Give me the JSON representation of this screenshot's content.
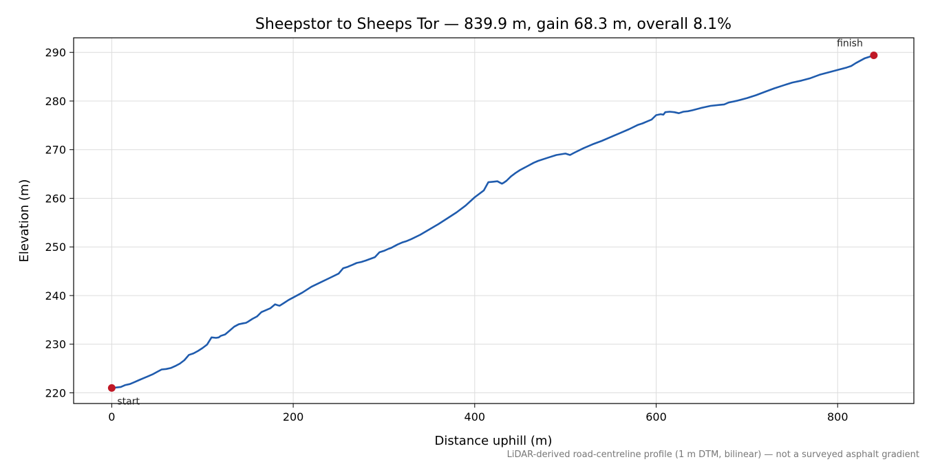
{
  "chart_data": {
    "type": "line",
    "title": "Sheepstor to Sheeps Tor — 839.9 m, gain 68.3 m, overall 8.1%",
    "xlabel": "Distance uphill (m)",
    "ylabel": "Elevation (m)",
    "xlim": [
      -42,
      884
    ],
    "ylim": [
      217.8,
      293.0
    ],
    "x_ticks": [
      0,
      200,
      400,
      600,
      800
    ],
    "y_ticks": [
      220,
      230,
      240,
      250,
      260,
      270,
      280,
      290
    ],
    "grid": true,
    "line_color": "#1f5bad",
    "marker_color": "#c01826",
    "series": [
      {
        "x": [
          0,
          5,
          10,
          15,
          20,
          25,
          30,
          35,
          40,
          45,
          50,
          55,
          60,
          65,
          70,
          75,
          80,
          85,
          90,
          95,
          100,
          105,
          110,
          115,
          118,
          120,
          125,
          130,
          135,
          140,
          145,
          148,
          150,
          155,
          160,
          165,
          170,
          175,
          180,
          183,
          185,
          190,
          195,
          200,
          210,
          220,
          230,
          240,
          250,
          255,
          260,
          265,
          270,
          275,
          280,
          290,
          295,
          300,
          305,
          308,
          310,
          315,
          320,
          325,
          330,
          340,
          350,
          360,
          370,
          380,
          390,
          400,
          410,
          415,
          420,
          425,
          428,
          430,
          432,
          435,
          440,
          445,
          450,
          460,
          465,
          470,
          480,
          490,
          500,
          505,
          510,
          520,
          530,
          540,
          550,
          560,
          570,
          580,
          585,
          590,
          595,
          600,
          605,
          608,
          610,
          615,
          620,
          625,
          630,
          635,
          640,
          650,
          660,
          670,
          675,
          680,
          690,
          700,
          710,
          720,
          730,
          740,
          750,
          760,
          770,
          780,
          790,
          800,
          810,
          815,
          820,
          830,
          839.9
        ],
        "y": [
          221.0,
          221.1,
          221.2,
          221.6,
          221.8,
          222.2,
          222.6,
          223.0,
          223.4,
          223.8,
          224.3,
          224.8,
          224.9,
          225.1,
          225.5,
          226.0,
          226.7,
          227.8,
          228.1,
          228.6,
          229.2,
          229.9,
          231.4,
          231.3,
          231.4,
          231.7,
          232.0,
          232.8,
          233.6,
          234.1,
          234.3,
          234.4,
          234.6,
          235.2,
          235.7,
          236.6,
          237.0,
          237.4,
          238.2,
          238.0,
          237.9,
          238.5,
          239.1,
          239.6,
          240.6,
          241.8,
          242.7,
          243.6,
          244.5,
          245.6,
          245.9,
          246.3,
          246.7,
          246.9,
          247.2,
          247.9,
          248.9,
          249.2,
          249.6,
          249.8,
          250.0,
          250.5,
          250.9,
          251.2,
          251.6,
          252.5,
          253.6,
          254.7,
          255.9,
          257.1,
          258.5,
          260.2,
          261.6,
          263.3,
          263.4,
          263.5,
          263.2,
          263.0,
          263.2,
          263.6,
          264.5,
          265.2,
          265.8,
          266.8,
          267.3,
          267.7,
          268.3,
          268.9,
          269.2,
          268.9,
          269.4,
          270.3,
          271.1,
          271.8,
          272.6,
          273.4,
          274.2,
          275.1,
          275.4,
          275.8,
          276.2,
          277.1,
          277.3,
          277.2,
          277.7,
          277.8,
          277.7,
          277.5,
          277.8,
          277.9,
          278.1,
          278.6,
          279.0,
          279.2,
          279.3,
          279.7,
          280.1,
          280.6,
          281.2,
          281.9,
          282.6,
          283.2,
          283.8,
          284.2,
          284.7,
          285.4,
          285.9,
          286.4,
          286.9,
          287.2,
          287.8,
          288.8,
          289.4
        ]
      }
    ],
    "annotations": {
      "start_label": "start",
      "finish_label": "finish",
      "start_point": [
        0,
        221.0
      ],
      "finish_point": [
        839.9,
        289.4
      ]
    },
    "note": "LiDAR-derived road-centreline profile (1 m DTM, bilinear) — not a surveyed asphalt gradient"
  }
}
